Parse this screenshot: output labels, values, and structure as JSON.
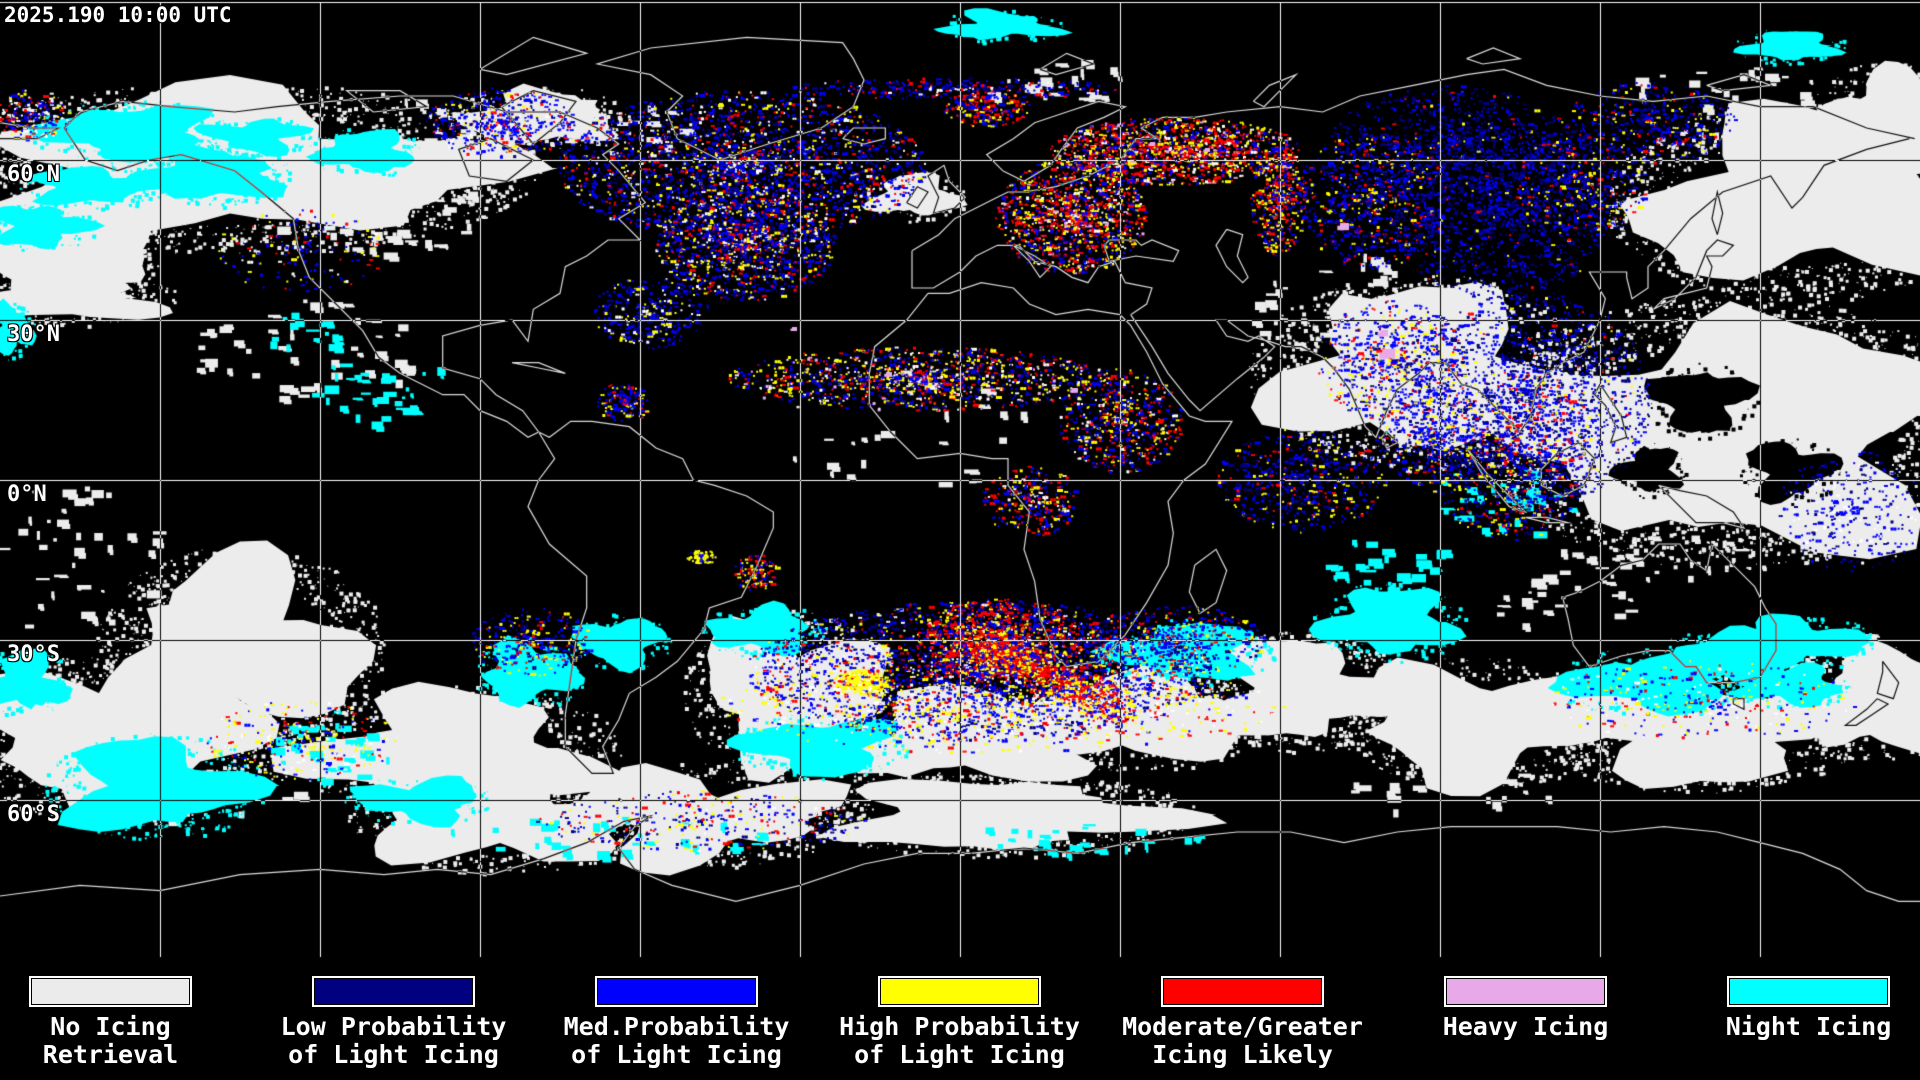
{
  "header": {
    "timestamp": "2025.190 10:00 UTC"
  },
  "map": {
    "latitude_labels": [
      "60°N",
      "30°N",
      "0°N",
      "30°S",
      "60°S"
    ]
  },
  "legend": {
    "items": [
      {
        "id": "no-icing-retrieval",
        "color": "#EBEBEB",
        "lines": [
          "No Icing",
          "Retrieval"
        ]
      },
      {
        "id": "low-probability",
        "color": "#000080",
        "lines": [
          "Low Probability",
          "of Light Icing"
        ]
      },
      {
        "id": "med-probability",
        "color": "#0000FF",
        "lines": [
          "Med.Probability",
          "of Light Icing"
        ]
      },
      {
        "id": "high-probability",
        "color": "#FFFF00",
        "lines": [
          "High Probability",
          "of Light Icing"
        ]
      },
      {
        "id": "moderate-greater",
        "color": "#FF0000",
        "lines": [
          "Moderate/Greater",
          "Icing Likely"
        ]
      },
      {
        "id": "heavy-icing",
        "color": "#E8A9E8",
        "lines": [
          "Heavy Icing"
        ]
      },
      {
        "id": "night-icing",
        "color": "#00FFFF",
        "lines": [
          "Night Icing"
        ]
      }
    ]
  },
  "palette": {
    "background": "#000000",
    "grid": "#FFFFFF",
    "coastline": "#DCDCDC",
    "cloud_white": "#ECECEC",
    "night_cyan": "#00FFFF",
    "low_navy": "#000080",
    "med_blue": "#0000FF",
    "high_yellow": "#FFFF00",
    "moderate_red": "#FF0000",
    "heavy_pink": "#E8A9E8",
    "speckle_white": "#FFFFFF"
  }
}
